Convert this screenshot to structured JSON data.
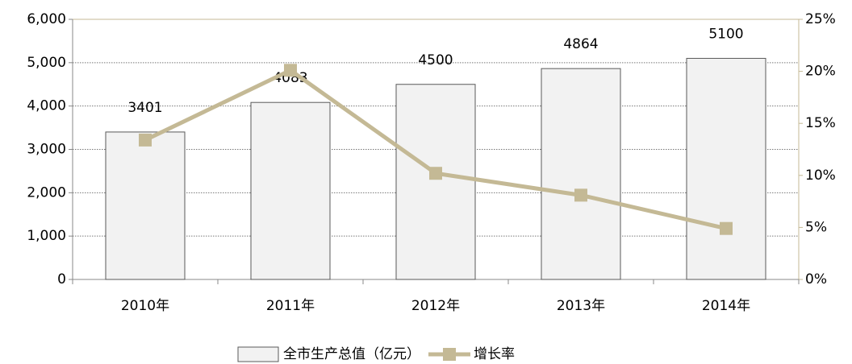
{
  "chart_data": {
    "type": "bar",
    "categories": [
      "2010年",
      "2011年",
      "2012年",
      "2013年",
      "2014年"
    ],
    "series": [
      {
        "name": "全市生产总值（亿元）",
        "type": "bar",
        "color": "#f2f2f2",
        "values": [
          3401,
          4083,
          4500,
          4864,
          5100
        ]
      },
      {
        "name": "增长率",
        "type": "line",
        "axis": "y2",
        "color": "#c4b995",
        "values": [
          13.4,
          20.1,
          10.2,
          8.1,
          4.9
        ]
      }
    ],
    "ylim": [
      0,
      6000
    ],
    "yticks": [
      0,
      {
        "value": 1000,
        "label": "1,000"
      },
      {
        "value": 2000,
        "label": "2,000"
      },
      {
        "value": 3000,
        "label": "3,000"
      },
      {
        "value": 4000,
        "label": "4,000"
      },
      {
        "value": 5000,
        "label": "5,000"
      },
      {
        "value": 6000,
        "label": "6,000"
      }
    ],
    "y2lim": [
      0,
      25
    ],
    "y2ticks": [
      {
        "value": 0,
        "label": "0%"
      },
      {
        "value": 5,
        "label": "5%"
      },
      {
        "value": 10,
        "label": "10%"
      },
      {
        "value": 15,
        "label": "15%"
      },
      {
        "value": 20,
        "label": "20%"
      },
      {
        "value": 25,
        "label": "25%"
      }
    ],
    "grid": true,
    "legend": "bottom"
  }
}
